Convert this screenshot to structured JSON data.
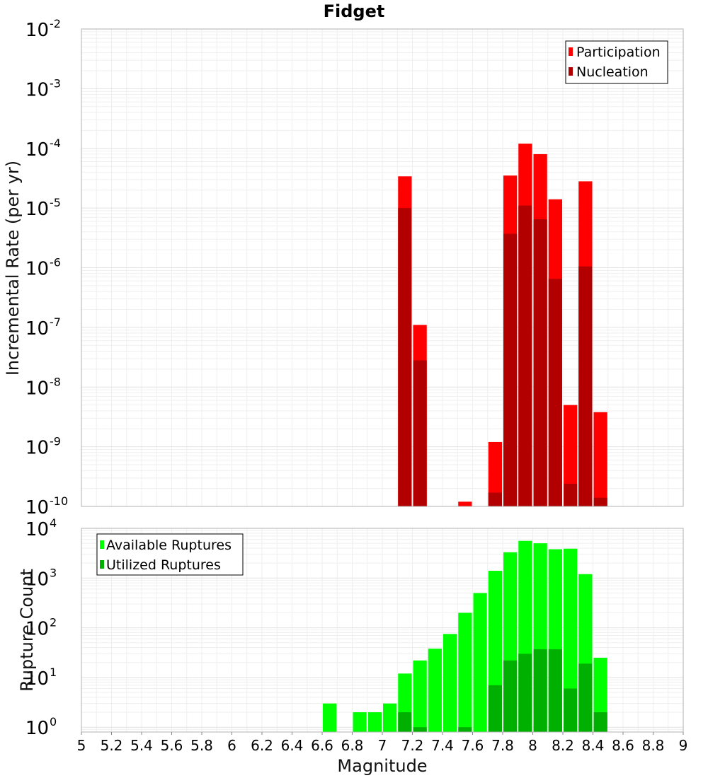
{
  "chart_data": [
    {
      "type": "bar",
      "title": "Fidget",
      "xlabel": "",
      "ylabel": "Incremental Rate (per yr)",
      "xlim": [
        5,
        9
      ],
      "ylim": [
        1e-10,
        0.01
      ],
      "yscale": "log",
      "grid": true,
      "legend_position": "top-right",
      "bin_width": 0.1,
      "yticks": [
        {
          "base": "10",
          "exp": "-10"
        },
        {
          "base": "10",
          "exp": "-9"
        },
        {
          "base": "10",
          "exp": "-8"
        },
        {
          "base": "10",
          "exp": "-7"
        },
        {
          "base": "10",
          "exp": "-6"
        },
        {
          "base": "10",
          "exp": "-5"
        },
        {
          "base": "10",
          "exp": "-4"
        },
        {
          "base": "10",
          "exp": "-3"
        },
        {
          "base": "10",
          "exp": "-2"
        }
      ],
      "series": [
        {
          "name": "Participation",
          "color": "#ff0000",
          "x": [
            7.15,
            7.25,
            7.55,
            7.75,
            7.85,
            7.95,
            8.05,
            8.15,
            8.25,
            8.35,
            8.45
          ],
          "values": [
            3.4e-05,
            1.1e-07,
            1.2e-10,
            1.2e-09,
            3.5e-05,
            0.00012,
            8e-05,
            1.4e-05,
            5e-09,
            2.8e-05,
            3.8e-09
          ]
        },
        {
          "name": "Nucleation",
          "color": "#b20000",
          "x": [
            7.15,
            7.25,
            7.75,
            7.85,
            7.95,
            8.05,
            8.15,
            8.25,
            8.35,
            8.45
          ],
          "values": [
            1e-05,
            2.8e-08,
            1.7e-10,
            3.7e-06,
            1.1e-05,
            6.5e-06,
            6.5e-07,
            2.4e-10,
            1.05e-06,
            1.4e-10
          ]
        }
      ]
    },
    {
      "type": "bar",
      "title": "",
      "xlabel": "Magnitude",
      "ylabel": "Rupture Count",
      "xlim": [
        5,
        9
      ],
      "ylim": [
        0.8,
        10000
      ],
      "yscale": "log",
      "grid": true,
      "legend_position": "top-left",
      "bin_width": 0.1,
      "xticks": [
        "5",
        "5.2",
        "5.4",
        "5.6",
        "5.8",
        "6",
        "6.2",
        "6.4",
        "6.6",
        "6.8",
        "7",
        "7.2",
        "7.4",
        "7.6",
        "7.8",
        "8",
        "8.2",
        "8.4",
        "8.6",
        "8.8",
        "9"
      ],
      "yticks": [
        {
          "base": "10",
          "exp": "0"
        },
        {
          "base": "10",
          "exp": "1"
        },
        {
          "base": "10",
          "exp": "2"
        },
        {
          "base": "10",
          "exp": "3"
        },
        {
          "base": "10",
          "exp": "4"
        }
      ],
      "series": [
        {
          "name": "Available Ruptures",
          "color": "#00ff00",
          "x": [
            6.65,
            6.85,
            6.95,
            7.05,
            7.15,
            7.25,
            7.35,
            7.45,
            7.55,
            7.65,
            7.75,
            7.85,
            7.95,
            8.05,
            8.15,
            8.25,
            8.35,
            8.45
          ],
          "values": [
            3,
            2,
            2,
            3,
            12,
            22,
            38,
            75,
            200,
            500,
            1400,
            3300,
            5600,
            5000,
            3800,
            3900,
            1200,
            25
          ]
        },
        {
          "name": "Utilized Ruptures",
          "color": "#00b000",
          "x": [
            7.15,
            7.25,
            7.55,
            7.75,
            7.85,
            7.95,
            8.05,
            8.15,
            8.25,
            8.35,
            8.45
          ],
          "values": [
            2,
            1,
            1,
            7,
            22,
            30,
            37,
            37,
            6,
            19,
            2
          ]
        }
      ]
    }
  ]
}
